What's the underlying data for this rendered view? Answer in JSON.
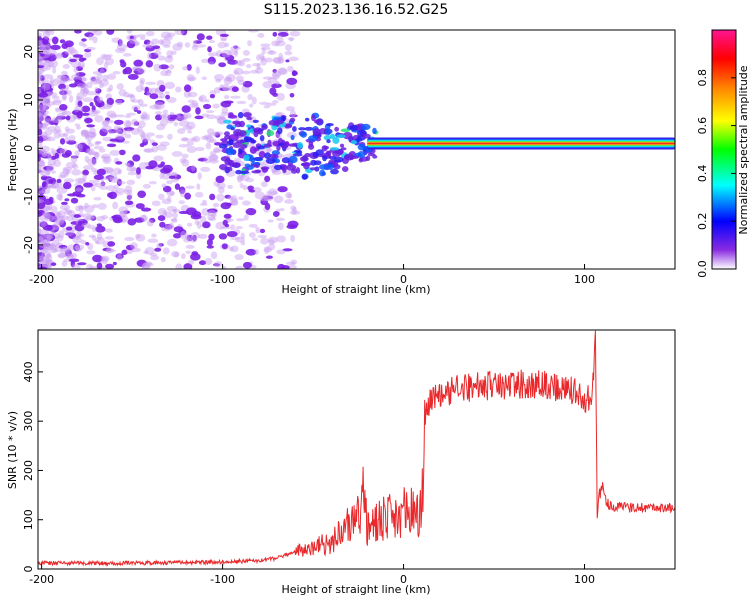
{
  "title": "S115.2023.136.16.52.G25",
  "chart_data": [
    {
      "type": "heatmap",
      "title": "",
      "xlabel": "Height of straight line (km)",
      "ylabel": "Frequency (Hz)",
      "xlim": [
        -202,
        150
      ],
      "ylim": [
        -25,
        24.5
      ],
      "xticks": [
        -200,
        -100,
        0,
        100
      ],
      "yticks": [
        -20,
        -10,
        0,
        10,
        20
      ],
      "colorbar": {
        "label": "Normalized spectral amplitude",
        "range": [
          0,
          1
        ],
        "ticks": [
          "0.0",
          "0.2",
          "0.4",
          "0.6",
          "0.8"
        ],
        "tick_values": [
          0.0,
          0.2,
          0.4,
          0.6,
          0.8
        ],
        "colors": [
          "#ffffff",
          "#8a2be2",
          "#0000ff",
          "#00ffff",
          "#00ff00",
          "#ffff00",
          "#ff8c00",
          "#ff0000",
          "#ff1493"
        ]
      },
      "regions": [
        {
          "description": "scattered noise",
          "x": [
            -202,
            -60
          ],
          "freq": [
            -25,
            24.5
          ],
          "amplitude": 0.1
        },
        {
          "description": "signal line",
          "x": [
            -100,
            150
          ],
          "freq_center": 1,
          "amplitude": 0.85
        }
      ]
    },
    {
      "type": "line",
      "title": "",
      "xlabel": "Height of straight line (km)",
      "ylabel": "SNR (10 * v/v)",
      "xlim": [
        -202,
        150
      ],
      "ylim": [
        0,
        485
      ],
      "xticks": [
        -200,
        -100,
        0,
        100
      ],
      "yticks": [
        0,
        100,
        200,
        300,
        400
      ],
      "color": "#e8282b",
      "series": [
        {
          "x": [
            -202,
            -150,
            -100,
            -80,
            -70,
            -60,
            -50,
            -40,
            -35,
            -30,
            -25,
            -22,
            -20,
            -15,
            -10,
            -5,
            0,
            5,
            10,
            12,
            13,
            15,
            20,
            30,
            40,
            50,
            60,
            70,
            80,
            90,
            95,
            100,
            104,
            106,
            107,
            108,
            110,
            112,
            115,
            120,
            130,
            140,
            150
          ],
          "values": [
            12,
            12,
            14,
            17,
            22,
            35,
            45,
            55,
            70,
            90,
            110,
            150,
            80,
            95,
            105,
            110,
            115,
            118,
            120,
            310,
            330,
            340,
            355,
            365,
            370,
            372,
            375,
            375,
            373,
            365,
            360,
            345,
            350,
            480,
            110,
            150,
            165,
            140,
            125,
            125,
            124,
            125,
            125
          ]
        }
      ]
    }
  ]
}
